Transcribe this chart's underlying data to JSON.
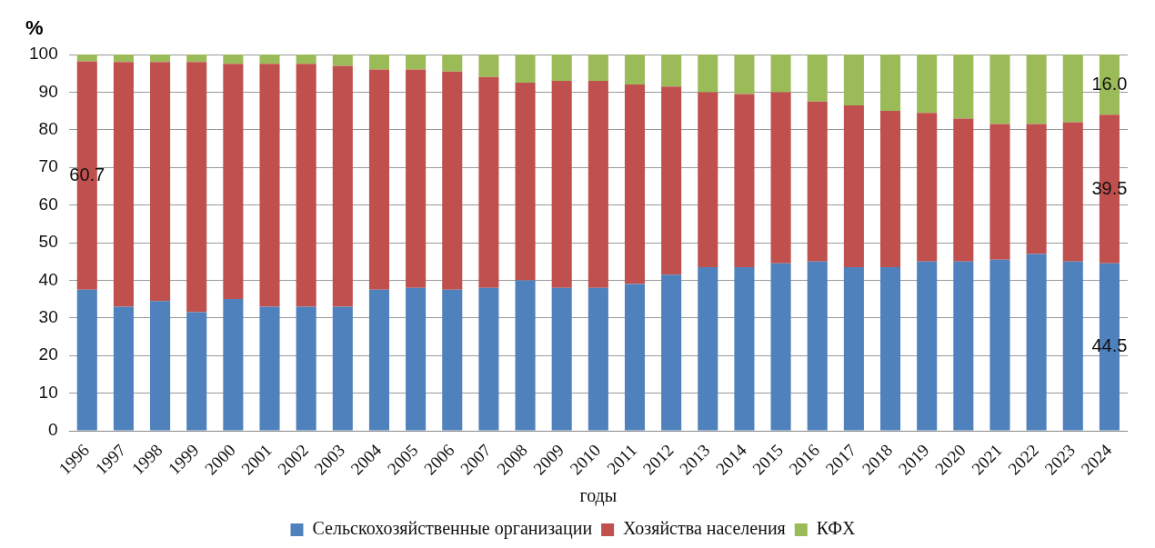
{
  "chart_data": {
    "type": "bar",
    "stacked": true,
    "ylabel": "%",
    "xlabel": "годы",
    "categories": [
      "1996",
      "1997",
      "1998",
      "1999",
      "2000",
      "2001",
      "2002",
      "2003",
      "2004",
      "2005",
      "2006",
      "2007",
      "2008",
      "2009",
      "2010",
      "2011",
      "2012",
      "2013",
      "2014",
      "2015",
      "2016",
      "2017",
      "2018",
      "2019",
      "2020",
      "2021",
      "2022",
      "2023",
      "2024"
    ],
    "series": [
      {
        "name": "Сельскохозяйственные организации",
        "color": "#4f81bd",
        "values": [
          37.5,
          33,
          34.5,
          31.5,
          35,
          33,
          33,
          33,
          37.5,
          38,
          37.5,
          38,
          40,
          38,
          38,
          39,
          41.5,
          43.5,
          43.5,
          44.5,
          45,
          43.5,
          43.5,
          45,
          45,
          45.5,
          47,
          45,
          44.5
        ],
        "value_labels": [
          null,
          null,
          null,
          null,
          null,
          null,
          null,
          null,
          null,
          null,
          null,
          null,
          null,
          null,
          null,
          null,
          null,
          null,
          null,
          null,
          null,
          null,
          null,
          null,
          null,
          null,
          null,
          null,
          "44.5"
        ]
      },
      {
        "name": "Хозяйства населения",
        "color": "#c0504d",
        "values": [
          60.7,
          65,
          63.5,
          66.5,
          62.5,
          64.5,
          64.5,
          64,
          58.5,
          58,
          58,
          56,
          52.5,
          55,
          55,
          53,
          50,
          46.5,
          46,
          45.5,
          42.5,
          43,
          41.5,
          39.5,
          38,
          36,
          34.5,
          37,
          39.5
        ],
        "value_labels": [
          "60.7",
          null,
          null,
          null,
          null,
          null,
          null,
          null,
          null,
          null,
          null,
          null,
          null,
          null,
          null,
          null,
          null,
          null,
          null,
          null,
          null,
          null,
          null,
          null,
          null,
          null,
          null,
          null,
          "39.5"
        ]
      },
      {
        "name": "КФХ",
        "color": "#9bbb59",
        "values": [
          1.8,
          2,
          2,
          2,
          2.5,
          2.5,
          2.5,
          3,
          4,
          4,
          4.5,
          6,
          7.5,
          7,
          7,
          8,
          8.5,
          10,
          10.5,
          10,
          12.5,
          13.5,
          15,
          15.5,
          17,
          18.5,
          18.5,
          18,
          16.0
        ],
        "value_labels": [
          null,
          null,
          null,
          null,
          null,
          null,
          null,
          null,
          null,
          null,
          null,
          null,
          null,
          null,
          null,
          null,
          null,
          null,
          null,
          null,
          null,
          null,
          null,
          null,
          null,
          null,
          null,
          null,
          "16.0"
        ]
      }
    ],
    "ylim": [
      0,
      100
    ],
    "yticks": [
      0,
      10,
      20,
      30,
      40,
      50,
      60,
      70,
      80,
      90,
      100
    ],
    "grid": "y",
    "legend": "bottom"
  }
}
